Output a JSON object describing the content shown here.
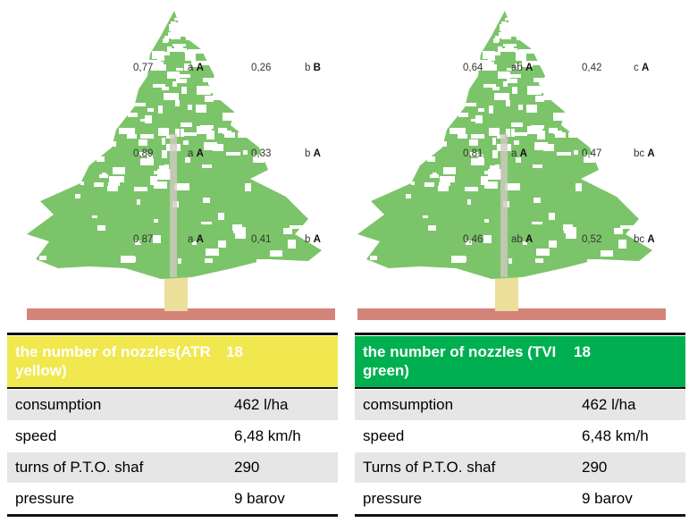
{
  "trees": [
    {
      "name": "ATR yellow",
      "labels": [
        {
          "v1": "0,77",
          "l1a": "a",
          "l1b": "A",
          "v2": "0,26",
          "l2a": "b",
          "l2b": "B"
        },
        {
          "v1": "0,89",
          "l1a": "a",
          "l1b": "A",
          "v2": "0,33",
          "l2a": "b",
          "l2b": "A"
        },
        {
          "v1": "0,87",
          "l1a": "a",
          "l1b": "A",
          "v2": "0,41",
          "l2a": "b",
          "l2b": "A"
        }
      ]
    },
    {
      "name": "TVI green",
      "labels": [
        {
          "v1": "0,64",
          "l1a": "ab",
          "l1b": "A",
          "v2": "0,42",
          "l2a": "c",
          "l2b": "A"
        },
        {
          "v1": "0,81",
          "l1a": "a",
          "l1b": "A",
          "v2": "0,47",
          "l2a": "bc",
          "l2b": "A"
        },
        {
          "v1": "0,46",
          "l1a": "ab",
          "l1b": "A",
          "v2": "0,52",
          "l2a": "bc",
          "l2b": "A"
        }
      ]
    }
  ],
  "tables": [
    {
      "header_color": "#f0e84e",
      "header": {
        "label": "the number of nozzles(ATR yellow)",
        "value": "18"
      },
      "rows": [
        {
          "label": "consumption",
          "value": "462 l/ha"
        },
        {
          "label": "speed",
          "value": "6,48 km/h"
        },
        {
          "label": "turns of P.T.O. shaf",
          "value": "290"
        },
        {
          "label": "pressure",
          "value": "9 barov"
        }
      ]
    },
    {
      "header_color": "#00b050",
      "header": {
        "label": "the number of nozzles (TVI green)",
        "value": "18"
      },
      "rows": [
        {
          "label": "comsumption",
          "value": "462 l/ha"
        },
        {
          "label": "speed",
          "value": "6,48 km/h"
        },
        {
          "label": "Turns of P.T.O. shaf",
          "value": "290"
        },
        {
          "label": "pressure",
          "value": "9 barov"
        }
      ]
    }
  ]
}
